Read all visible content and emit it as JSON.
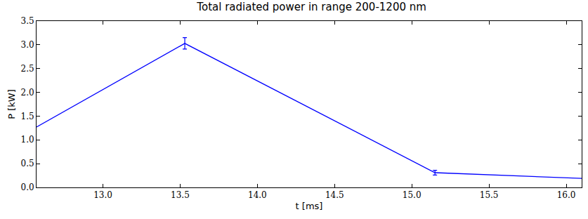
{
  "chart_data": {
    "type": "line",
    "title": "Total radiated power in range 200-1200 nm",
    "x_label": "t [ms]",
    "y_label": "P [kW]",
    "x": [
      12.57,
      13.53,
      15.15,
      16.1
    ],
    "series": [
      {
        "name": "P",
        "color": "#0000ff",
        "values": [
          1.27,
          3.03,
          0.31,
          0.19
        ],
        "error": [
          null,
          0.12,
          0.05,
          null
        ]
      }
    ],
    "xlim": [
      12.57,
      16.1
    ],
    "ylim": [
      0,
      3.5
    ],
    "xticks": [
      {
        "value": 13,
        "label": "13.0"
      },
      {
        "value": 13.5,
        "label": "13.5"
      },
      {
        "value": 14,
        "label": "14.0"
      },
      {
        "value": 14.5,
        "label": "14.5"
      },
      {
        "value": 15,
        "label": "15.0"
      },
      {
        "value": 15.5,
        "label": "15.5"
      },
      {
        "value": 16,
        "label": "16.0"
      }
    ],
    "yticks": [
      {
        "value": 0,
        "label": "0.0"
      },
      0.5,
      {
        "value": 1,
        "label": "1.0"
      },
      1.5,
      {
        "value": 2,
        "label": "2.0"
      },
      2.5,
      {
        "value": 3,
        "label": "3.0"
      },
      3.5
    ],
    "grid": false
  }
}
